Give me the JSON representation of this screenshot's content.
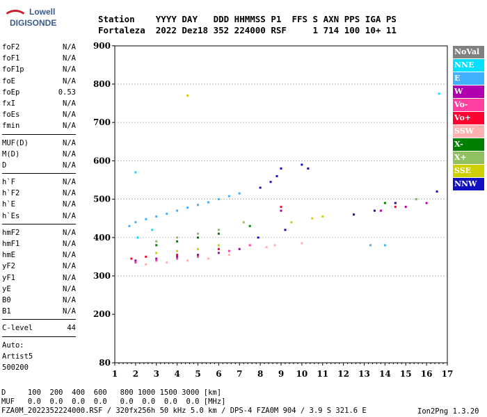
{
  "logo": {
    "line1": "Lowell",
    "line2": "DIGISONDE"
  },
  "header": {
    "line1": "Station    YYYY DAY   DDD HHMMSS P1  FFS S AXN PPS IGA PS",
    "line2": "Fortaleza  2022 Dez18 352 224000 RSF     1 714 100 10+ 11"
  },
  "params_group1": [
    {
      "name": "foF2",
      "value": "N/A"
    },
    {
      "name": "foF1",
      "value": "N/A"
    },
    {
      "name": "foF1p",
      "value": "N/A"
    },
    {
      "name": "foE",
      "value": "N/A"
    },
    {
      "name": "foEp",
      "value": "0.53"
    },
    {
      "name": "fxI",
      "value": "N/A"
    },
    {
      "name": "foEs",
      "value": "N/A"
    },
    {
      "name": "fmin",
      "value": "N/A"
    }
  ],
  "params_group2": [
    {
      "name": "MUF(D)",
      "value": "N/A"
    },
    {
      "name": "M(D)",
      "value": "N/A"
    },
    {
      "name": "D",
      "value": "N/A"
    }
  ],
  "params_group3": [
    {
      "name": "h`F",
      "value": "N/A"
    },
    {
      "name": "h`F2",
      "value": "N/A"
    },
    {
      "name": "h`E",
      "value": "N/A"
    },
    {
      "name": "h`Es",
      "value": "N/A"
    }
  ],
  "params_group4": [
    {
      "name": "hmF2",
      "value": "N/A"
    },
    {
      "name": "hmF1",
      "value": "N/A"
    },
    {
      "name": "hmE",
      "value": "N/A"
    },
    {
      "name": "yF2",
      "value": "N/A"
    },
    {
      "name": "yF1",
      "value": "N/A"
    },
    {
      "name": "yE",
      "value": "N/A"
    },
    {
      "name": "B0",
      "value": "N/A"
    },
    {
      "name": "B1",
      "value": "N/A"
    }
  ],
  "clevel": {
    "name": "C-level",
    "value": "44"
  },
  "auto": {
    "line1": "Auto:",
    "line2": "Artist5",
    "line3": "500200"
  },
  "legend": [
    {
      "label": "NoVal",
      "color": "#808080"
    },
    {
      "label": "NNE",
      "color": "#00e0ff"
    },
    {
      "label": "E",
      "color": "#40b0ff"
    },
    {
      "label": "W",
      "color": "#b000b0"
    },
    {
      "label": "Vo-",
      "color": "#ff40a0"
    },
    {
      "label": "Vo+",
      "color": "#ff0030"
    },
    {
      "label": "SSW",
      "color": "#ffb0b0"
    },
    {
      "label": "X-",
      "color": "#008000"
    },
    {
      "label": "X+",
      "color": "#90c060"
    },
    {
      "label": "SSE",
      "color": "#d0d000"
    },
    {
      "label": "NNW",
      "color": "#1010c0"
    }
  ],
  "footer": {
    "line1": "D     100  200  400  600   800 1000 1500 3000 [km]",
    "line2": "MUF   0.0  0.0  0.0  0.0   0.0  0.0  0.0  0.0 [MHz]",
    "line3": "FZA0M_2022352224000.RSF / 320fx256h 50 kHz 5.0 km / DPS-4 FZA0M 904 / 3.9 S 321.6 E"
  },
  "credit": "Ion2Png 1.3.20",
  "chart_data": {
    "type": "scatter",
    "title": "",
    "xlabel": "",
    "ylabel": "",
    "x_ticks": [
      1,
      2,
      3,
      4,
      5,
      6,
      7,
      8,
      9,
      10,
      11,
      12,
      13,
      14,
      15,
      16,
      17
    ],
    "y_ticks": [
      80,
      200,
      300,
      400,
      500,
      600,
      700,
      800,
      900
    ],
    "xlim": [
      1,
      17
    ],
    "ylim_labels": [
      80,
      900
    ],
    "grid": "horizontal dashed at 300,400,500,600,700,800",
    "series": [
      {
        "name": "E",
        "color": "#40b0ff",
        "points": [
          [
            1.7,
            430
          ],
          [
            2.0,
            440
          ],
          [
            2.5,
            448
          ],
          [
            3.0,
            455
          ],
          [
            3.5,
            462
          ],
          [
            4.0,
            470
          ],
          [
            4.5,
            478
          ],
          [
            5.0,
            485
          ],
          [
            5.5,
            492
          ],
          [
            6.0,
            500
          ],
          [
            6.5,
            508
          ],
          [
            7.0,
            515
          ],
          [
            13.3,
            380
          ],
          [
            14.0,
            380
          ]
        ]
      },
      {
        "name": "NNW",
        "color": "#1010c0",
        "points": [
          [
            8.0,
            530
          ],
          [
            8.5,
            545
          ],
          [
            8.8,
            560
          ],
          [
            9.0,
            580
          ],
          [
            10.0,
            590
          ],
          [
            10.3,
            580
          ],
          [
            12.5,
            460
          ],
          [
            13.5,
            470
          ],
          [
            14.5,
            490
          ],
          [
            15.5,
            500
          ],
          [
            16.5,
            520
          ],
          [
            7.9,
            400
          ],
          [
            9.2,
            420
          ]
        ]
      },
      {
        "name": "NNE",
        "color": "#00e0ff",
        "points": [
          [
            2.0,
            570
          ],
          [
            2.1,
            400
          ],
          [
            2.8,
            420
          ],
          [
            16.6,
            775
          ]
        ]
      },
      {
        "name": "W",
        "color": "#b000b0",
        "points": [
          [
            2.0,
            340
          ],
          [
            3.0,
            345
          ],
          [
            4.0,
            350
          ],
          [
            5.0,
            355
          ],
          [
            6.0,
            360
          ],
          [
            7.0,
            370
          ],
          [
            9.0,
            470
          ],
          [
            13.8,
            470
          ],
          [
            15.0,
            480
          ],
          [
            16.0,
            490
          ]
        ]
      },
      {
        "name": "Vo-",
        "color": "#ff40a0",
        "points": [
          [
            2.0,
            335
          ],
          [
            3.0,
            340
          ],
          [
            4.0,
            345
          ],
          [
            5.0,
            350
          ],
          [
            6.5,
            365
          ],
          [
            7.5,
            380
          ]
        ]
      },
      {
        "name": "Vo+",
        "color": "#ff0030",
        "points": [
          [
            1.8,
            345
          ],
          [
            2.5,
            350
          ],
          [
            4.0,
            355
          ],
          [
            6.0,
            370
          ],
          [
            9.0,
            480
          ],
          [
            14.5,
            480
          ]
        ]
      },
      {
        "name": "SSW",
        "color": "#ffb0b0",
        "points": [
          [
            2.5,
            330
          ],
          [
            3.5,
            335
          ],
          [
            4.5,
            340
          ],
          [
            5.5,
            345
          ],
          [
            6.5,
            355
          ],
          [
            8.3,
            375
          ],
          [
            8.7,
            380
          ],
          [
            10.0,
            385
          ]
        ]
      },
      {
        "name": "X-",
        "color": "#008000",
        "points": [
          [
            3.0,
            380
          ],
          [
            4.0,
            390
          ],
          [
            5.0,
            400
          ],
          [
            6.0,
            410
          ],
          [
            7.5,
            430
          ],
          [
            14.0,
            490
          ]
        ]
      },
      {
        "name": "X+",
        "color": "#90c060",
        "points": [
          [
            3.0,
            390
          ],
          [
            4.0,
            400
          ],
          [
            5.0,
            410
          ],
          [
            6.0,
            420
          ],
          [
            7.2,
            440
          ],
          [
            15.5,
            500
          ]
        ]
      },
      {
        "name": "SSE",
        "color": "#d0d000",
        "points": [
          [
            3.0,
            360
          ],
          [
            4.0,
            365
          ],
          [
            5.0,
            370
          ],
          [
            6.0,
            380
          ],
          [
            9.5,
            440
          ],
          [
            10.5,
            450
          ],
          [
            11.0,
            455
          ],
          [
            4.5,
            770
          ]
        ]
      }
    ]
  }
}
